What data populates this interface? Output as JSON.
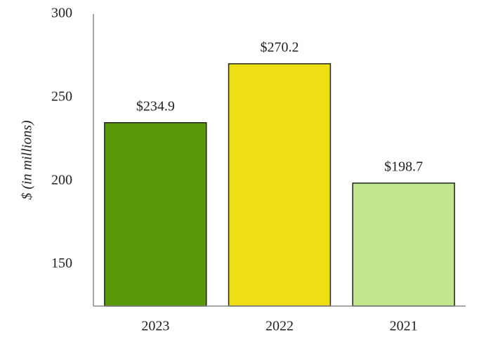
{
  "chart_data": {
    "type": "bar",
    "y_label": "$ (in millions)",
    "categories": [
      "2023",
      "2022",
      "2021"
    ],
    "values": [
      234.9,
      270.2,
      198.7
    ],
    "value_labels": [
      "$234.9",
      "$270.2",
      "$198.7"
    ],
    "colors": [
      "#5a9a0a",
      "#eedf14",
      "#bfe68a"
    ],
    "ylim": [
      125,
      300
    ],
    "yticks": [
      150,
      200,
      250,
      300
    ],
    "grid": false
  }
}
